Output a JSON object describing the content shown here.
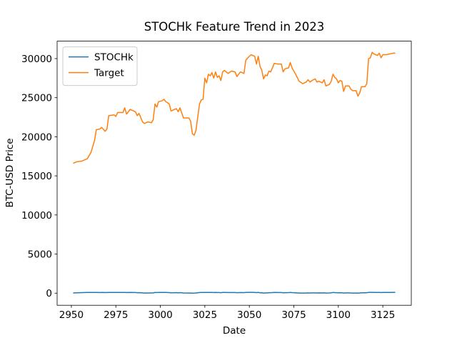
{
  "chart_data": {
    "type": "line",
    "title": "STOCHk Feature Trend in 2023",
    "x_label": "Date",
    "y_label": "BTC-USD Price",
    "x": [
      2951,
      2953,
      2956,
      2959,
      2961,
      2963,
      2964,
      2966,
      2967,
      2969,
      2970,
      2971,
      2974,
      2975,
      2976,
      2979,
      2980,
      2981,
      2983,
      2986,
      2987,
      2988,
      2990,
      2991,
      2993,
      2995,
      2996,
      2997,
      2998,
      2999,
      3001,
      3002,
      3003,
      3005,
      3006,
      3008,
      3009,
      3010,
      3011,
      3013,
      3016,
      3017,
      3018,
      3019,
      3020,
      3022,
      3023,
      3024,
      3025,
      3026,
      3027,
      3028,
      3029,
      3030,
      3031,
      3032,
      3033,
      3034,
      3035,
      3036,
      3038,
      3040,
      3042,
      3043,
      3045,
      3047,
      3048,
      3050,
      3051,
      3053,
      3054,
      3055,
      3056,
      3057,
      3058,
      3059,
      3060,
      3061,
      3062,
      3064,
      3066,
      3068,
      3069,
      3070,
      3072,
      3073,
      3074,
      3076,
      3078,
      3080,
      3082,
      3083,
      3084,
      3086,
      3087,
      3088,
      3089,
      3091,
      3092,
      3093,
      3095,
      3096,
      3097,
      3098,
      3099,
      3100,
      3101,
      3102,
      3103,
      3104,
      3106,
      3107,
      3108,
      3110,
      3111,
      3112,
      3113,
      3115,
      3116,
      3117,
      3118,
      3119,
      3120,
      3122,
      3123,
      3124,
      3125,
      3127,
      3129,
      3131,
      3132
    ],
    "series": [
      {
        "name": "STOCHk",
        "color": "#1f77b4",
        "values": [
          20,
          45,
          70,
          85,
          90,
          92,
          88,
          80,
          86,
          75,
          82,
          90,
          93,
          88,
          91,
          85,
          95,
          80,
          86,
          78,
          60,
          72,
          30,
          15,
          20,
          18,
          35,
          88,
          75,
          92,
          95,
          96,
          85,
          70,
          40,
          55,
          62,
          45,
          70,
          20,
          15,
          10,
          5,
          8,
          20,
          80,
          90,
          92,
          96,
          85,
          95,
          90,
          93,
          80,
          92,
          75,
          82,
          60,
          88,
          90,
          75,
          82,
          78,
          55,
          80,
          72,
          95,
          97,
          98,
          95,
          70,
          92,
          50,
          40,
          10,
          30,
          35,
          60,
          58,
          85,
          80,
          82,
          45,
          60,
          62,
          88,
          65,
          40,
          15,
          8,
          15,
          30,
          20,
          35,
          38,
          25,
          30,
          22,
          40,
          15,
          25,
          45,
          85,
          70,
          60,
          40,
          55,
          50,
          10,
          35,
          33,
          20,
          15,
          15,
          5,
          18,
          45,
          45,
          55,
          96,
          97,
          99,
          95,
          90,
          96,
          80,
          92,
          90,
          94,
          97,
          97
        ]
      },
      {
        "name": "Target",
        "color": "#ff7f0e",
        "values": [
          16600,
          16800,
          16900,
          17200,
          18000,
          19500,
          20900,
          21000,
          21200,
          20700,
          21000,
          22700,
          22800,
          22600,
          23100,
          23100,
          23700,
          22900,
          23500,
          23200,
          22700,
          23000,
          21900,
          21700,
          21900,
          21800,
          22200,
          24200,
          23800,
          24500,
          24600,
          24800,
          24500,
          24200,
          23300,
          23500,
          23600,
          23200,
          23700,
          22400,
          22400,
          22000,
          20400,
          20200,
          20800,
          24200,
          24700,
          24800,
          27500,
          26900,
          28000,
          27800,
          28200,
          27500,
          28300,
          27600,
          27800,
          27200,
          28300,
          28500,
          28100,
          28400,
          28300,
          27700,
          28300,
          28100,
          29800,
          30300,
          30500,
          30300,
          29300,
          30300,
          29000,
          28500,
          27400,
          27900,
          27800,
          28400,
          28300,
          29400,
          29300,
          29300,
          28300,
          28700,
          28800,
          29500,
          28800,
          28000,
          27100,
          26800,
          27000,
          27300,
          27000,
          27300,
          27400,
          27000,
          27100,
          26900,
          27300,
          26500,
          26700,
          27100,
          28000,
          27600,
          27400,
          26900,
          27200,
          27100,
          25800,
          26500,
          26500,
          26100,
          25900,
          25900,
          25200,
          25600,
          26400,
          26400,
          26800,
          30000,
          30100,
          30800,
          30600,
          30400,
          30700,
          30100,
          30500,
          30500,
          30600,
          30700,
          30700
        ]
      }
    ],
    "xlim": [
      2942,
      3141
    ],
    "xticks": [
      2950,
      2975,
      3000,
      3025,
      3050,
      3075,
      3100,
      3125
    ],
    "ylim": [
      -1550,
      32230
    ],
    "yticks": [
      0,
      5000,
      10000,
      15000,
      20000,
      25000,
      30000
    ],
    "grid": false,
    "legend": "upper left"
  }
}
